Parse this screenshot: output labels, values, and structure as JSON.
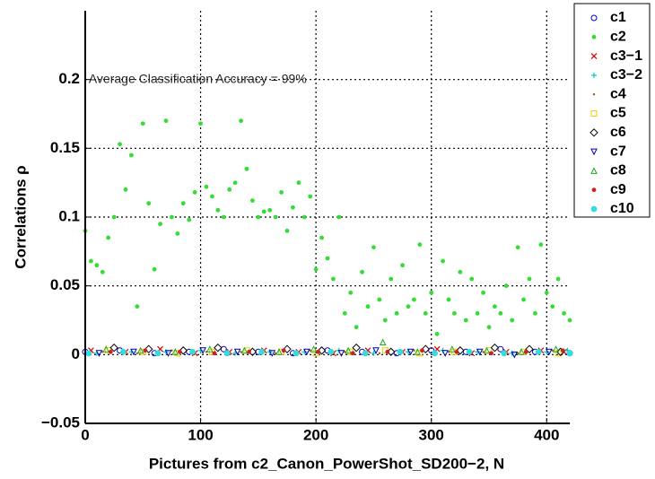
{
  "chart_data": {
    "type": "scatter",
    "annotation": "Average Classification Accuracy = 99%",
    "annotation_at": [
      3,
      0.2
    ],
    "x_label": "Pictures from c2_Canon_PowerShot_SD200−2, N",
    "y_label": "Correlations ρ",
    "xlim": [
      0,
      420
    ],
    "ylim": [
      -0.05,
      0.25
    ],
    "xticks": [
      0,
      100,
      200,
      300,
      400
    ],
    "yticks": [
      {
        "value": -0.05,
        "label": "−0.05"
      },
      0,
      0.05,
      0.1,
      0.15,
      0.2
    ],
    "grid": true,
    "legend": "right",
    "series": [
      {
        "name": "c1",
        "color": "#0000cc",
        "marker": "circle",
        "x": [
          0,
          30,
          60,
          90,
          120,
          150,
          180,
          210,
          240,
          270,
          300,
          330,
          360,
          390,
          420
        ],
        "values": [
          0.002,
          0.003,
          0.001,
          0.002,
          0.004,
          0.002,
          0.001,
          0.003,
          0.002,
          0.001,
          0.003,
          0.002,
          0.004,
          0.002,
          0.001
        ]
      },
      {
        "name": "c2",
        "color": "#33dd33",
        "marker": "dot",
        "x": [
          0,
          5,
          10,
          15,
          20,
          25,
          30,
          35,
          40,
          45,
          50,
          55,
          60,
          65,
          70,
          75,
          80,
          85,
          90,
          95,
          100,
          105,
          110,
          115,
          120,
          125,
          130,
          135,
          140,
          145,
          150,
          155,
          160,
          165,
          170,
          175,
          180,
          185,
          190,
          195,
          200,
          205,
          210,
          215,
          220,
          225,
          230,
          235,
          240,
          245,
          250,
          255,
          260,
          265,
          270,
          275,
          280,
          285,
          290,
          295,
          300,
          305,
          310,
          315,
          320,
          325,
          330,
          335,
          340,
          345,
          350,
          355,
          360,
          365,
          370,
          375,
          380,
          385,
          390,
          395,
          400,
          405,
          410,
          415,
          420
        ],
        "values": [
          0.09,
          0.068,
          0.065,
          0.06,
          0.085,
          0.1,
          0.153,
          0.12,
          0.145,
          0.035,
          0.168,
          0.11,
          0.062,
          0.095,
          0.17,
          0.1,
          0.088,
          0.11,
          0.098,
          0.118,
          0.168,
          0.122,
          0.115,
          0.105,
          0.1,
          0.12,
          0.125,
          0.17,
          0.135,
          0.112,
          0.1,
          0.104,
          0.105,
          0.1,
          0.118,
          0.09,
          0.107,
          0.125,
          0.1,
          0.115,
          0.062,
          0.085,
          0.07,
          0.055,
          0.1,
          0.03,
          0.045,
          0.02,
          0.06,
          0.035,
          0.078,
          0.04,
          0.025,
          0.055,
          0.03,
          0.065,
          0.035,
          0.04,
          0.08,
          0.03,
          0.045,
          0.015,
          0.068,
          0.04,
          0.03,
          0.06,
          0.025,
          0.055,
          0.03,
          0.045,
          0.02,
          0.035,
          0.03,
          0.05,
          0.025,
          0.078,
          0.04,
          0.055,
          0.03,
          0.08,
          0.045,
          0.035,
          0.055,
          0.03,
          0.025
        ]
      },
      {
        "name": "c3−1",
        "color": "#dd0000",
        "marker": "x",
        "x": [
          5,
          35,
          65,
          95,
          125,
          155,
          185,
          215,
          245,
          275,
          305,
          335,
          365,
          395,
          415
        ],
        "values": [
          0.003,
          0.002,
          0.004,
          0.001,
          0.002,
          0.003,
          0.002,
          0.001,
          0.003,
          0.002,
          0.004,
          0.001,
          0.002,
          0.003,
          0.002
        ]
      },
      {
        "name": "c3−2",
        "color": "#00cccc",
        "marker": "plus",
        "x": [
          10,
          40,
          70,
          100,
          130,
          160,
          190,
          220,
          250,
          280,
          310,
          340,
          370,
          400,
          418
        ],
        "values": [
          0.001,
          0.002,
          0.002,
          0.003,
          0.001,
          0.002,
          0.002,
          0.003,
          0.001,
          0.002,
          0.003,
          0.002,
          0.001,
          0.002,
          0.003
        ]
      },
      {
        "name": "c4",
        "color": "#aa5500",
        "marker": "point",
        "x": [
          15,
          45,
          75,
          105,
          135,
          165,
          195,
          225,
          255,
          285,
          315,
          345,
          375,
          405
        ],
        "values": [
          0.002,
          0.001,
          0.003,
          0.002,
          0.002,
          0.001,
          0.003,
          0.002,
          0.001,
          0.003,
          0.002,
          0.002,
          0.001,
          0.003
        ]
      },
      {
        "name": "c5",
        "color": "#eecc00",
        "marker": "square",
        "x": [
          20,
          50,
          80,
          110,
          140,
          170,
          200,
          230,
          260,
          290,
          320,
          350,
          380,
          410
        ],
        "values": [
          0.003,
          0.002,
          0.001,
          0.002,
          0.003,
          0.002,
          0.001,
          0.002,
          0.003,
          0.001,
          0.002,
          0.003,
          0.002,
          0.001
        ]
      },
      {
        "name": "c6",
        "color": "#000000",
        "marker": "diamond",
        "x": [
          25,
          55,
          85,
          115,
          145,
          175,
          205,
          235,
          265,
          295,
          325,
          355,
          385,
          412
        ],
        "values": [
          0.005,
          0.004,
          0.003,
          0.005,
          0.002,
          0.004,
          0.003,
          0.005,
          0.002,
          0.004,
          0.003,
          0.005,
          0.004,
          0.002
        ]
      },
      {
        "name": "c7",
        "color": "#0000aa",
        "marker": "tridown",
        "x": [
          12,
          42,
          72,
          102,
          132,
          162,
          192,
          222,
          252,
          282,
          312,
          342,
          372,
          402
        ],
        "values": [
          0.001,
          0.002,
          0.001,
          0.003,
          0.002,
          0.001,
          0.002,
          0.001,
          0.003,
          0.002,
          0.001,
          0.002,
          0.0,
          0.002
        ]
      },
      {
        "name": "c8",
        "color": "#22aa22",
        "marker": "triup",
        "x": [
          18,
          48,
          78,
          108,
          138,
          168,
          198,
          228,
          258,
          288,
          318,
          348,
          378,
          408
        ],
        "values": [
          0.004,
          0.003,
          0.002,
          0.004,
          0.003,
          0.002,
          0.004,
          0.003,
          0.009,
          0.002,
          0.004,
          0.003,
          0.002,
          0.004
        ]
      },
      {
        "name": "c9",
        "color": "#cc2222",
        "marker": "dot",
        "x": [
          22,
          52,
          82,
          112,
          142,
          172,
          202,
          232,
          262,
          292,
          322,
          352,
          382,
          414
        ],
        "values": [
          0.002,
          0.003,
          0.002,
          0.001,
          0.002,
          0.003,
          0.002,
          0.001,
          0.002,
          0.003,
          0.002,
          0.001,
          0.002,
          0.003
        ]
      },
      {
        "name": "c10",
        "color": "#33dddd",
        "marker": "circlefill",
        "x": [
          3,
          33,
          63,
          93,
          123,
          153,
          183,
          213,
          243,
          273,
          303,
          333,
          363,
          393,
          420
        ],
        "values": [
          0.001,
          0.002,
          0.001,
          0.002,
          0.001,
          0.002,
          0.001,
          0.002,
          0.001,
          0.002,
          0.001,
          0.002,
          0.001,
          0.002,
          0.001
        ]
      }
    ]
  }
}
